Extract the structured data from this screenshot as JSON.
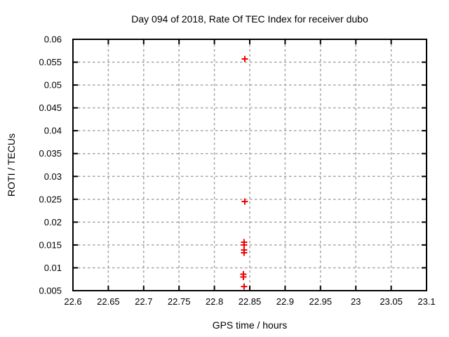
{
  "chart_data": {
    "type": "scatter",
    "title": "Day 094 of 2018, Rate Of TEC Index for receiver dubo",
    "xlabel": "GPS time / hours",
    "ylabel": "ROTI / TECUs",
    "xlim": [
      22.6,
      23.1
    ],
    "ylim": [
      0.005,
      0.06
    ],
    "xticks": [
      22.6,
      22.65,
      22.7,
      22.75,
      22.8,
      22.85,
      22.9,
      22.95,
      23,
      23.05,
      23.1
    ],
    "xtick_labels": [
      "22.6",
      "22.65",
      "22.7",
      "22.75",
      "22.8",
      "22.85",
      "22.9",
      "22.95",
      "23",
      "23.05",
      "23.1"
    ],
    "yticks": [
      0.005,
      0.01,
      0.015,
      0.02,
      0.025,
      0.03,
      0.035,
      0.04,
      0.045,
      0.05,
      0.055,
      0.06
    ],
    "ytick_labels": [
      "0.005",
      "0.01",
      "0.015",
      "0.02",
      "0.025",
      "0.03",
      "0.035",
      "0.04",
      "0.045",
      "0.05",
      "0.055",
      "0.06"
    ],
    "grid": true,
    "legend": "none",
    "marker": "plus",
    "marker_color": "#ee0000",
    "grid_color": "#a6a6a6",
    "border_color": "#000000",
    "series": [
      {
        "name": "ROTI",
        "points": [
          [
            22.843,
            0.0557
          ],
          [
            22.843,
            0.0245
          ],
          [
            22.842,
            0.0156
          ],
          [
            22.842,
            0.015
          ],
          [
            22.842,
            0.0139
          ],
          [
            22.842,
            0.0133
          ],
          [
            22.841,
            0.0086
          ],
          [
            22.841,
            0.008
          ],
          [
            22.842,
            0.0059
          ]
        ]
      }
    ]
  }
}
